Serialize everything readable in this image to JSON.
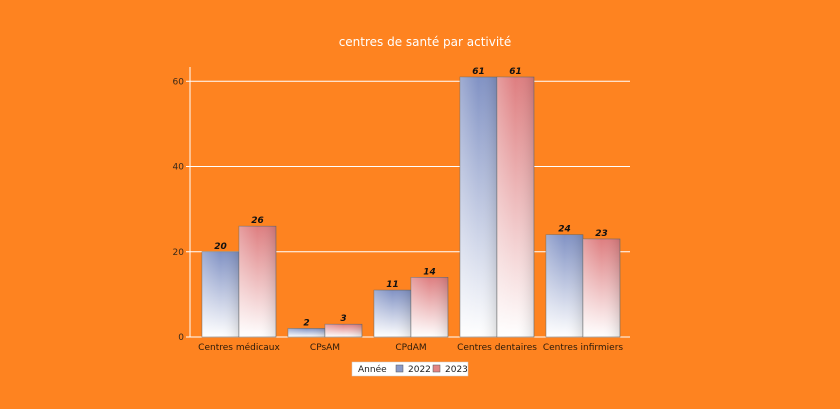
{
  "chart_data": {
    "type": "bar",
    "title": "centres de santé par activité",
    "categories": [
      "Centres médicaux",
      "CPsAM",
      "CPdAM",
      "Centres dentaires",
      "Centres infirmiers"
    ],
    "series": [
      {
        "name": "2022",
        "values": [
          20,
          2,
          11,
          61,
          24
        ]
      },
      {
        "name": "2023",
        "values": [
          26,
          3,
          14,
          61,
          23
        ]
      }
    ],
    "ylim": [
      0,
      61
    ],
    "yticks": [
      0,
      20,
      40,
      60
    ],
    "legend": {
      "title": "Année",
      "placement": "bottom"
    },
    "grid": true,
    "colors": {
      "background": "#fe8320",
      "series_2022": "#8a9ac8",
      "series_2023": "#e28585"
    }
  }
}
